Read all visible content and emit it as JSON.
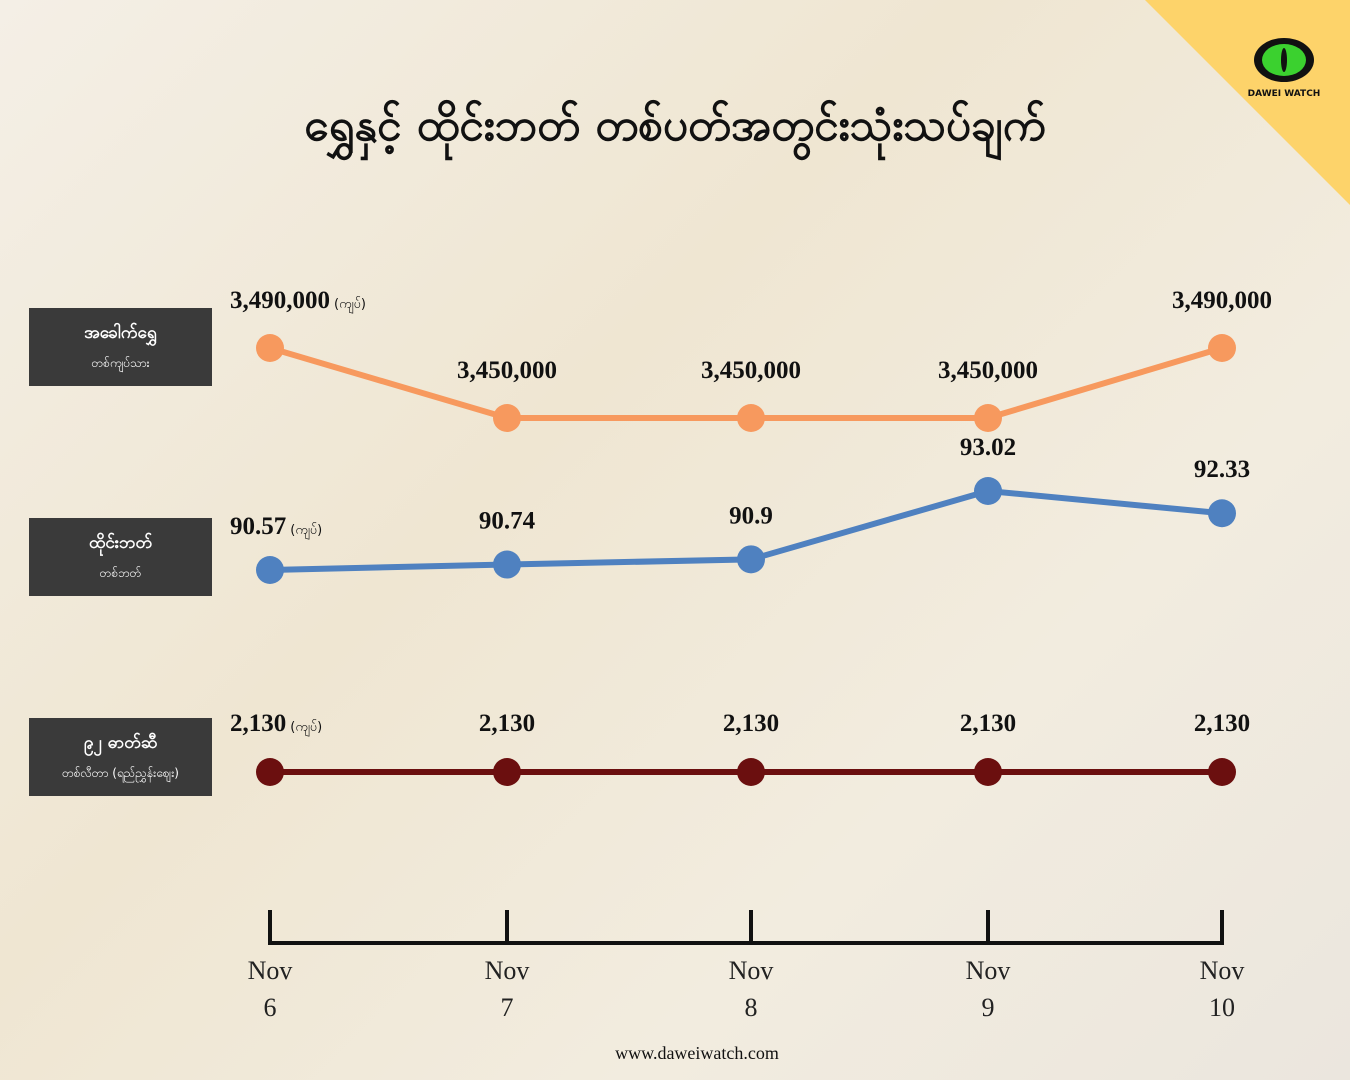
{
  "chart_data": {
    "type": "line",
    "title": "ရွှေနှင့် ထိုင်းဘတ် တစ်ပတ်အတွင်းသုံးသပ်ချက်",
    "logo": "DAWEI WATCH",
    "website": "www.daweiwatch.com",
    "unit": "(ကျပ်)",
    "categories": [
      "Nov 6",
      "Nov 7",
      "Nov 8",
      "Nov 9",
      "Nov 10"
    ],
    "series": [
      {
        "name": "အခေါက်ရွှေ",
        "measure": "တစ်ကျပ်သား",
        "color": "#f7995e",
        "values": [
          3490000,
          3450000,
          3450000,
          3450000,
          3490000
        ],
        "value_labels": [
          "3,490,000",
          "3,450,000",
          "3,450,000",
          "3,450,000",
          "3,490,000"
        ]
      },
      {
        "name": "ထိုင်းဘတ်",
        "measure": "တစ်ဘတ်",
        "color": "#4f81c0",
        "values": [
          90.57,
          90.74,
          90.9,
          93.02,
          92.33
        ]
      },
      {
        "name": "၉၂ ဓာတ်ဆီ",
        "measure": "တစ်လီတာ (ရည်ညွှန်းဈေး)",
        "color": "#6b0f0f",
        "values": [
          2130,
          2130,
          2130,
          2130,
          2130
        ],
        "value_labels": [
          "2,130",
          "2,130",
          "2,130",
          "2,130",
          "2,130"
        ]
      }
    ]
  }
}
